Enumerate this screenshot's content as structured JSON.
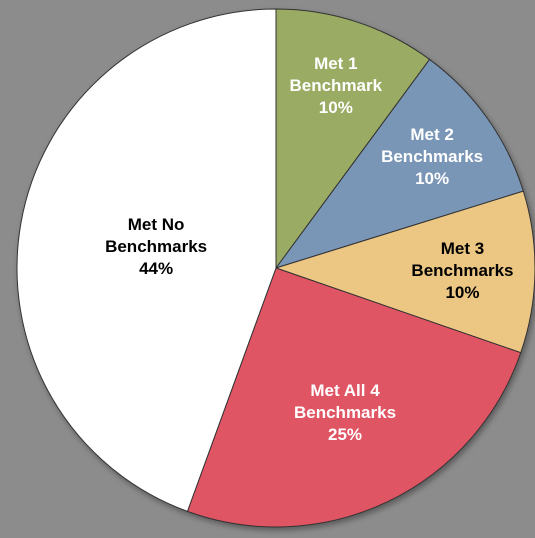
{
  "chart_data": {
    "type": "pie",
    "categories": [
      "Met 1 Benchmark",
      "Met 2 Benchmarks",
      "Met 3 Benchmarks",
      "Met All 4 Benchmarks",
      "Met No Benchmarks"
    ],
    "values": [
      10,
      10,
      10,
      25,
      44
    ],
    "value_labels": [
      "10%",
      "10%",
      "10%",
      "25%",
      "44%"
    ],
    "colors": [
      "#9aab63",
      "#7a96b6",
      "#ecc683",
      "#e05464",
      "#ffffff"
    ]
  }
}
